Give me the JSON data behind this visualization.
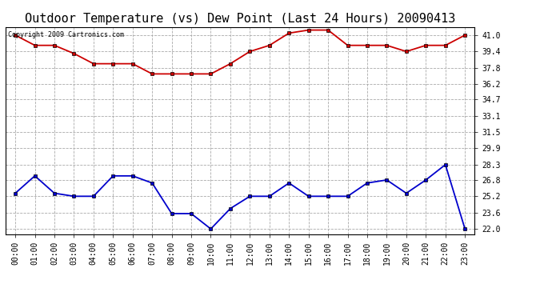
{
  "title": "Outdoor Temperature (vs) Dew Point (Last 24 Hours) 20090413",
  "copyright": "Copyright 2009 Cartronics.com",
  "hours": [
    "00:00",
    "01:00",
    "02:00",
    "03:00",
    "04:00",
    "05:00",
    "06:00",
    "07:00",
    "08:00",
    "09:00",
    "10:00",
    "11:00",
    "12:00",
    "13:00",
    "14:00",
    "15:00",
    "16:00",
    "17:00",
    "18:00",
    "19:00",
    "20:00",
    "21:00",
    "22:00",
    "23:00"
  ],
  "temp": [
    41.0,
    40.0,
    40.0,
    39.2,
    38.2,
    38.2,
    38.2,
    37.2,
    37.2,
    37.2,
    37.2,
    38.2,
    39.4,
    40.0,
    41.2,
    41.5,
    41.5,
    40.0,
    40.0,
    40.0,
    39.4,
    40.0,
    40.0,
    41.0
  ],
  "dew": [
    25.5,
    27.2,
    25.5,
    25.2,
    25.2,
    27.2,
    27.2,
    26.5,
    23.5,
    23.5,
    22.0,
    24.0,
    25.2,
    25.2,
    26.5,
    25.2,
    25.2,
    25.2,
    26.5,
    26.8,
    25.5,
    26.8,
    28.3,
    22.0
  ],
  "temp_color": "#cc0000",
  "dew_color": "#0000cc",
  "bg_color": "#ffffff",
  "plot_bg": "#ffffff",
  "grid_color": "#aaaaaa",
  "yticks": [
    22.0,
    23.6,
    25.2,
    26.8,
    28.3,
    29.9,
    31.5,
    33.1,
    34.7,
    36.2,
    37.8,
    39.4,
    41.0
  ],
  "ylim": [
    21.5,
    41.8
  ],
  "title_fontsize": 11,
  "tick_fontsize": 7,
  "marker": "s",
  "marker_size": 3,
  "linewidth": 1.3
}
